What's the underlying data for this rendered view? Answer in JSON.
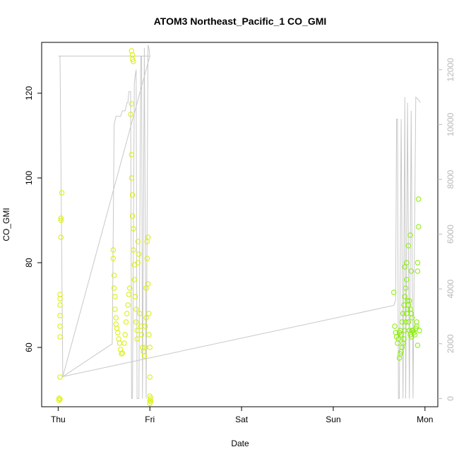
{
  "chart_data": {
    "type": "scatter",
    "title": "ATOM3 Northeast_Pacific_1 CO_GMI",
    "xlabel": "Date",
    "ylabel": "CO_GMI",
    "x_ticks": [
      "Thu",
      "Fri",
      "Sat",
      "Sun",
      "Mon"
    ],
    "x_tick_days": [
      0,
      1,
      2,
      3,
      4
    ],
    "xlim": [
      -0.18,
      4.14
    ],
    "ylim": [
      46,
      132
    ],
    "y_ticks": [
      60,
      80,
      100,
      120
    ],
    "y2lim": [
      -300,
      13000
    ],
    "y2_ticks": [
      0,
      2000,
      4000,
      6000,
      8000,
      10000,
      12000
    ],
    "grid": false,
    "colors": {
      "points_early": "#d9ef00",
      "points_late": "#88ee00",
      "altitude_line": "#c8c8c8",
      "right_axis": "#b8b8b8"
    },
    "series": [
      {
        "values": [
          [
            0.01,
            47.5
          ],
          [
            0.01,
            48
          ],
          [
            0.02,
            47.8
          ],
          [
            0.02,
            53
          ],
          [
            0.02,
            62.5
          ],
          [
            0.02,
            65
          ],
          [
            0.02,
            67.5
          ],
          [
            0.02,
            70
          ],
          [
            0.02,
            71.5
          ],
          [
            0.02,
            72.5
          ],
          [
            0.03,
            86
          ],
          [
            0.03,
            90
          ],
          [
            0.03,
            90.5
          ],
          [
            0.04,
            96.5
          ],
          [
            0.6,
            83
          ],
          [
            0.6,
            81
          ],
          [
            0.61,
            77
          ],
          [
            0.61,
            74
          ],
          [
            0.62,
            72
          ],
          [
            0.62,
            69
          ],
          [
            0.63,
            67
          ],
          [
            0.63,
            65.5
          ],
          [
            0.64,
            64.5
          ],
          [
            0.65,
            63.5
          ],
          [
            0.66,
            62
          ],
          [
            0.67,
            61
          ],
          [
            0.68,
            59.5
          ],
          [
            0.69,
            58.5
          ],
          [
            0.7,
            58.7
          ],
          [
            0.72,
            61
          ],
          [
            0.73,
            63
          ],
          [
            0.74,
            66
          ],
          [
            0.75,
            68
          ],
          [
            0.76,
            70
          ],
          [
            0.77,
            72.5
          ],
          [
            0.78,
            74
          ],
          [
            0.79,
            115
          ],
          [
            0.8,
            117.5
          ],
          [
            0.8,
            105.5
          ],
          [
            0.8,
            100
          ],
          [
            0.81,
            96
          ],
          [
            0.81,
            91
          ],
          [
            0.82,
            88
          ],
          [
            0.82,
            83
          ],
          [
            0.83,
            79.5
          ],
          [
            0.83,
            76
          ],
          [
            0.84,
            72
          ],
          [
            0.85,
            69
          ],
          [
            0.85,
            66
          ],
          [
            0.86,
            64
          ],
          [
            0.86,
            62
          ],
          [
            0.87,
            80
          ],
          [
            0.87,
            85
          ],
          [
            0.88,
            82
          ],
          [
            0.8,
            130
          ],
          [
            0.81,
            129
          ],
          [
            0.81,
            128
          ],
          [
            0.82,
            127.5
          ],
          [
            0.89,
            68
          ],
          [
            0.9,
            65
          ],
          [
            0.91,
            63
          ],
          [
            0.92,
            60
          ],
          [
            0.93,
            59
          ],
          [
            0.94,
            58
          ],
          [
            0.95,
            60
          ],
          [
            0.95,
            65
          ],
          [
            0.96,
            67
          ],
          [
            0.96,
            74
          ],
          [
            0.97,
            81
          ],
          [
            0.97,
            85
          ],
          [
            0.98,
            86
          ],
          [
            0.98,
            75
          ],
          [
            0.99,
            68
          ],
          [
            0.99,
            63
          ],
          [
            1.0,
            60
          ],
          [
            1.0,
            53
          ],
          [
            1.0,
            48.5
          ],
          [
            1.0,
            47.5
          ],
          [
            1.0,
            46.8
          ],
          [
            1.01,
            47.2
          ],
          [
            1.01,
            48
          ]
        ]
      },
      {
        "values": [
          [
            3.66,
            73
          ],
          [
            3.67,
            65
          ],
          [
            3.68,
            63.5
          ],
          [
            3.69,
            62.5
          ],
          [
            3.7,
            61
          ],
          [
            3.71,
            62
          ],
          [
            3.72,
            63.5
          ],
          [
            3.73,
            64
          ],
          [
            3.74,
            63
          ],
          [
            3.75,
            66
          ],
          [
            3.76,
            68
          ],
          [
            3.77,
            70
          ],
          [
            3.78,
            72
          ],
          [
            3.79,
            74
          ],
          [
            3.8,
            76
          ],
          [
            3.81,
            71
          ],
          [
            3.82,
            66
          ],
          [
            3.83,
            64
          ],
          [
            3.84,
            63
          ],
          [
            3.85,
            62.5
          ],
          [
            3.86,
            64
          ],
          [
            3.72,
            57.5
          ],
          [
            3.73,
            58.5
          ],
          [
            3.74,
            59
          ],
          [
            3.75,
            60
          ],
          [
            3.76,
            61
          ],
          [
            3.77,
            62
          ],
          [
            3.78,
            64
          ],
          [
            3.79,
            66
          ],
          [
            3.8,
            68
          ],
          [
            3.81,
            69
          ],
          [
            3.82,
            70
          ],
          [
            3.83,
            71
          ],
          [
            3.84,
            69
          ],
          [
            3.85,
            68
          ],
          [
            3.86,
            67
          ],
          [
            3.78,
            79
          ],
          [
            3.8,
            80
          ],
          [
            3.82,
            84
          ],
          [
            3.84,
            86.5
          ],
          [
            3.85,
            78
          ],
          [
            3.87,
            64
          ],
          [
            3.88,
            63.5
          ],
          [
            3.89,
            63
          ],
          [
            3.9,
            64.5
          ],
          [
            3.91,
            65
          ],
          [
            3.91,
            66
          ],
          [
            3.92,
            78
          ],
          [
            3.92,
            80
          ],
          [
            3.93,
            88.5
          ],
          [
            3.93,
            95
          ],
          [
            3.94,
            64
          ],
          [
            3.92,
            60.5
          ]
        ]
      }
    ],
    "altitude_series": {
      "values": [
        [
          0.0,
          12500
        ],
        [
          0.02,
          12500
        ],
        [
          0.05,
          800
        ],
        [
          0.59,
          2000
        ],
        [
          0.6,
          6000
        ],
        [
          0.61,
          10000
        ],
        [
          0.63,
          10300
        ],
        [
          0.68,
          10300
        ],
        [
          0.7,
          10500
        ],
        [
          0.73,
          10500
        ],
        [
          0.75,
          10800
        ],
        [
          0.76,
          10800
        ],
        [
          0.77,
          11200
        ],
        [
          0.79,
          11200
        ],
        [
          0.8,
          0
        ],
        [
          0.81,
          0
        ],
        [
          0.83,
          11500
        ],
        [
          0.84,
          11800
        ],
        [
          0.85,
          12000
        ],
        [
          0.86,
          0
        ],
        [
          0.88,
          0
        ],
        [
          0.9,
          12500
        ],
        [
          0.91,
          12500
        ],
        [
          0.92,
          0
        ],
        [
          0.94,
          12800
        ],
        [
          0.96,
          0
        ],
        [
          0.98,
          12900
        ],
        [
          0.99,
          12800
        ],
        [
          1.0,
          12500
        ],
        [
          0.02,
          12500
        ],
        [
          1.0,
          12500
        ],
        [
          0.05,
          800
        ],
        [
          3.66,
          3400
        ],
        [
          3.68,
          3600
        ],
        [
          3.69,
          10200
        ],
        [
          3.7,
          10200
        ],
        [
          3.71,
          0
        ],
        [
          3.72,
          0
        ],
        [
          3.74,
          10200
        ],
        [
          3.76,
          0
        ],
        [
          3.78,
          11000
        ],
        [
          3.79,
          0
        ],
        [
          3.81,
          10800
        ],
        [
          3.83,
          0
        ],
        [
          3.85,
          10500
        ],
        [
          3.87,
          0
        ],
        [
          3.9,
          11000
        ],
        [
          3.93,
          10900
        ],
        [
          3.95,
          10800
        ]
      ]
    }
  }
}
